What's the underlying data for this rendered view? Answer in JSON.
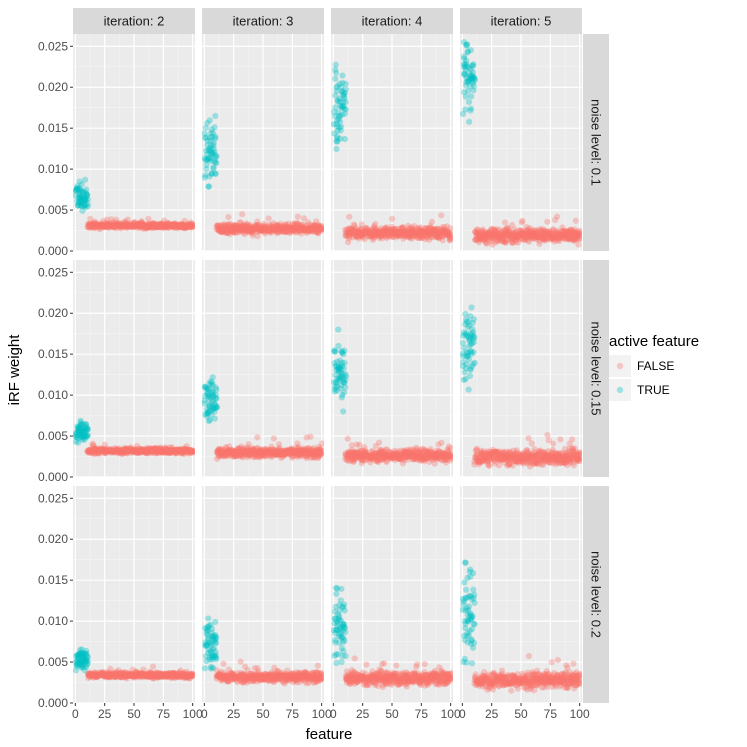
{
  "chart_data": {
    "type": "scatter",
    "title": "",
    "xlabel": "feature",
    "ylabel": "iRF weight",
    "xlim": [
      -2,
      102
    ],
    "ylim": [
      0,
      0.0265
    ],
    "x_ticks": [
      0,
      25,
      50,
      75,
      100
    ],
    "x_tick_labels": [
      "0",
      "25",
      "50",
      "75",
      "100"
    ],
    "y_ticks": [
      0,
      0.005,
      0.01,
      0.015,
      0.02,
      0.025
    ],
    "y_tick_labels": [
      "0.000",
      "0.005",
      "0.010",
      "0.015",
      "0.020",
      "0.025"
    ],
    "grid": true,
    "facet_cols": {
      "name": "iteration",
      "labels": [
        "iteration: 2",
        "iteration: 3",
        "iteration: 4",
        "iteration: 5"
      ]
    },
    "facet_rows": {
      "name": "noise level",
      "labels": [
        "noise level: 0.1",
        "noise level: 0.15",
        "noise level: 0.2"
      ]
    },
    "legend": {
      "title": "active feature",
      "position": "right",
      "entries": [
        {
          "label": "FALSE",
          "color": "#F8766D"
        },
        {
          "label": "TRUE",
          "color": "#00BFC4"
        }
      ]
    },
    "series_description": {
      "TRUE": "features 1-10 (active)",
      "FALSE": "features 11-100 (inactive)"
    },
    "panels": [
      {
        "row": 0,
        "col": 0,
        "true_mean": 0.0068,
        "true_min": 0.0045,
        "true_max": 0.0087,
        "false_mean": 0.0031,
        "false_spread": 0.0005
      },
      {
        "row": 0,
        "col": 1,
        "true_mean": 0.0118,
        "true_min": 0.0066,
        "true_max": 0.0165,
        "false_mean": 0.0027,
        "false_spread": 0.0009
      },
      {
        "row": 0,
        "col": 2,
        "true_mean": 0.0175,
        "true_min": 0.0105,
        "true_max": 0.0232,
        "false_mean": 0.0022,
        "false_spread": 0.0012
      },
      {
        "row": 0,
        "col": 3,
        "true_mean": 0.021,
        "true_min": 0.0152,
        "true_max": 0.0255,
        "false_mean": 0.0019,
        "false_spread": 0.0013
      },
      {
        "row": 1,
        "col": 0,
        "true_mean": 0.0056,
        "true_min": 0.0042,
        "true_max": 0.0075,
        "false_mean": 0.0032,
        "false_spread": 0.0005
      },
      {
        "row": 1,
        "col": 1,
        "true_mean": 0.0092,
        "true_min": 0.0058,
        "true_max": 0.0131,
        "false_mean": 0.003,
        "false_spread": 0.0009
      },
      {
        "row": 1,
        "col": 2,
        "true_mean": 0.013,
        "true_min": 0.008,
        "true_max": 0.018,
        "false_mean": 0.0026,
        "false_spread": 0.0011
      },
      {
        "row": 1,
        "col": 3,
        "true_mean": 0.016,
        "true_min": 0.0092,
        "true_max": 0.0207,
        "false_mean": 0.0024,
        "false_spread": 0.0014
      },
      {
        "row": 2,
        "col": 0,
        "true_mean": 0.0052,
        "true_min": 0.004,
        "true_max": 0.0072,
        "false_mean": 0.0034,
        "false_spread": 0.0005
      },
      {
        "row": 2,
        "col": 1,
        "true_mean": 0.0072,
        "true_min": 0.0042,
        "true_max": 0.012,
        "false_mean": 0.0032,
        "false_spread": 0.0009
      },
      {
        "row": 2,
        "col": 2,
        "true_mean": 0.009,
        "true_min": 0.0042,
        "true_max": 0.0155,
        "false_mean": 0.003,
        "false_spread": 0.0012
      },
      {
        "row": 2,
        "col": 3,
        "true_mean": 0.0112,
        "true_min": 0.004,
        "true_max": 0.0185,
        "false_mean": 0.0028,
        "false_spread": 0.0014
      }
    ]
  }
}
